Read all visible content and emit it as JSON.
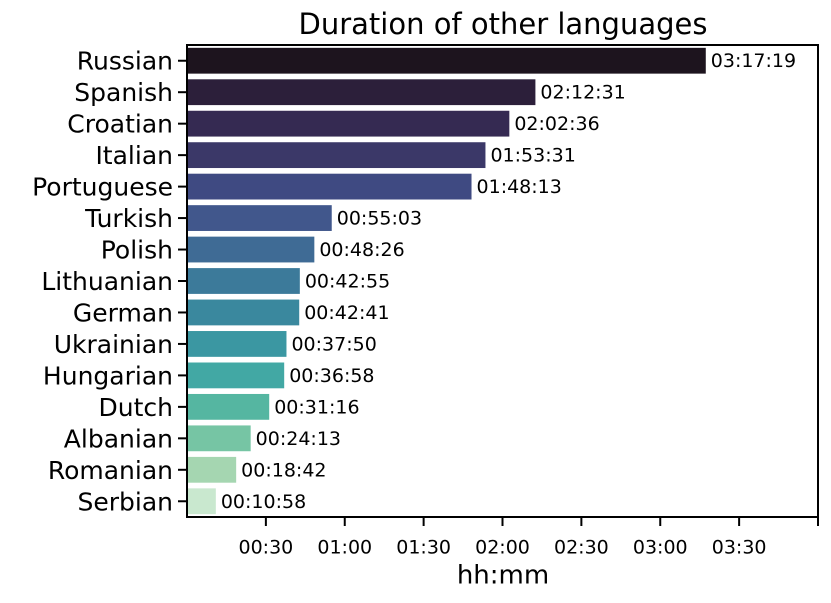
{
  "chart_data": {
    "type": "barh",
    "title": "Duration of other languages",
    "x_label": "hh:mm",
    "categories": [
      "Russian",
      "Spanish",
      "Croatian",
      "Italian",
      "Portuguese",
      "Turkish",
      "Polish",
      "Lithuanian",
      "German",
      "Ukrainian",
      "Hungarian",
      "Dutch",
      "Albanian",
      "Romanian",
      "Serbian"
    ],
    "values": [
      197.3167,
      132.5167,
      122.6,
      113.5167,
      108.2167,
      55.05,
      48.4333,
      42.9167,
      42.6833,
      37.8333,
      36.9667,
      31.2667,
      24.2167,
      18.7,
      10.9667
    ],
    "value_labels": [
      "03:17:19",
      "02:12:31",
      "02:02:36",
      "01:53:31",
      "01:48:13",
      "00:55:03",
      "00:48:26",
      "00:42:55",
      "00:42:41",
      "00:37:50",
      "00:36:58",
      "00:31:16",
      "00:24:13",
      "00:18:42",
      "00:10:58"
    ],
    "colors": [
      "#1d141e",
      "#2c1f3a",
      "#352a52",
      "#3b3868",
      "#3f4a82",
      "#41578c",
      "#3f6b95",
      "#3c7a9a",
      "#3a889e",
      "#3b97a2",
      "#42a8a4",
      "#55b6a1",
      "#76c5a4",
      "#a5d6b1",
      "#c9e8cf"
    ],
    "xlim": [
      0,
      240
    ],
    "xticks": [
      {
        "value": 30,
        "label": "00:30"
      },
      {
        "value": 60,
        "label": "01:00"
      },
      {
        "value": 90,
        "label": "01:30"
      },
      {
        "value": 120,
        "label": "02:00"
      },
      {
        "value": 150,
        "label": "02:30"
      },
      {
        "value": 180,
        "label": "03:00"
      },
      {
        "value": 210,
        "label": "03:30"
      }
    ]
  }
}
